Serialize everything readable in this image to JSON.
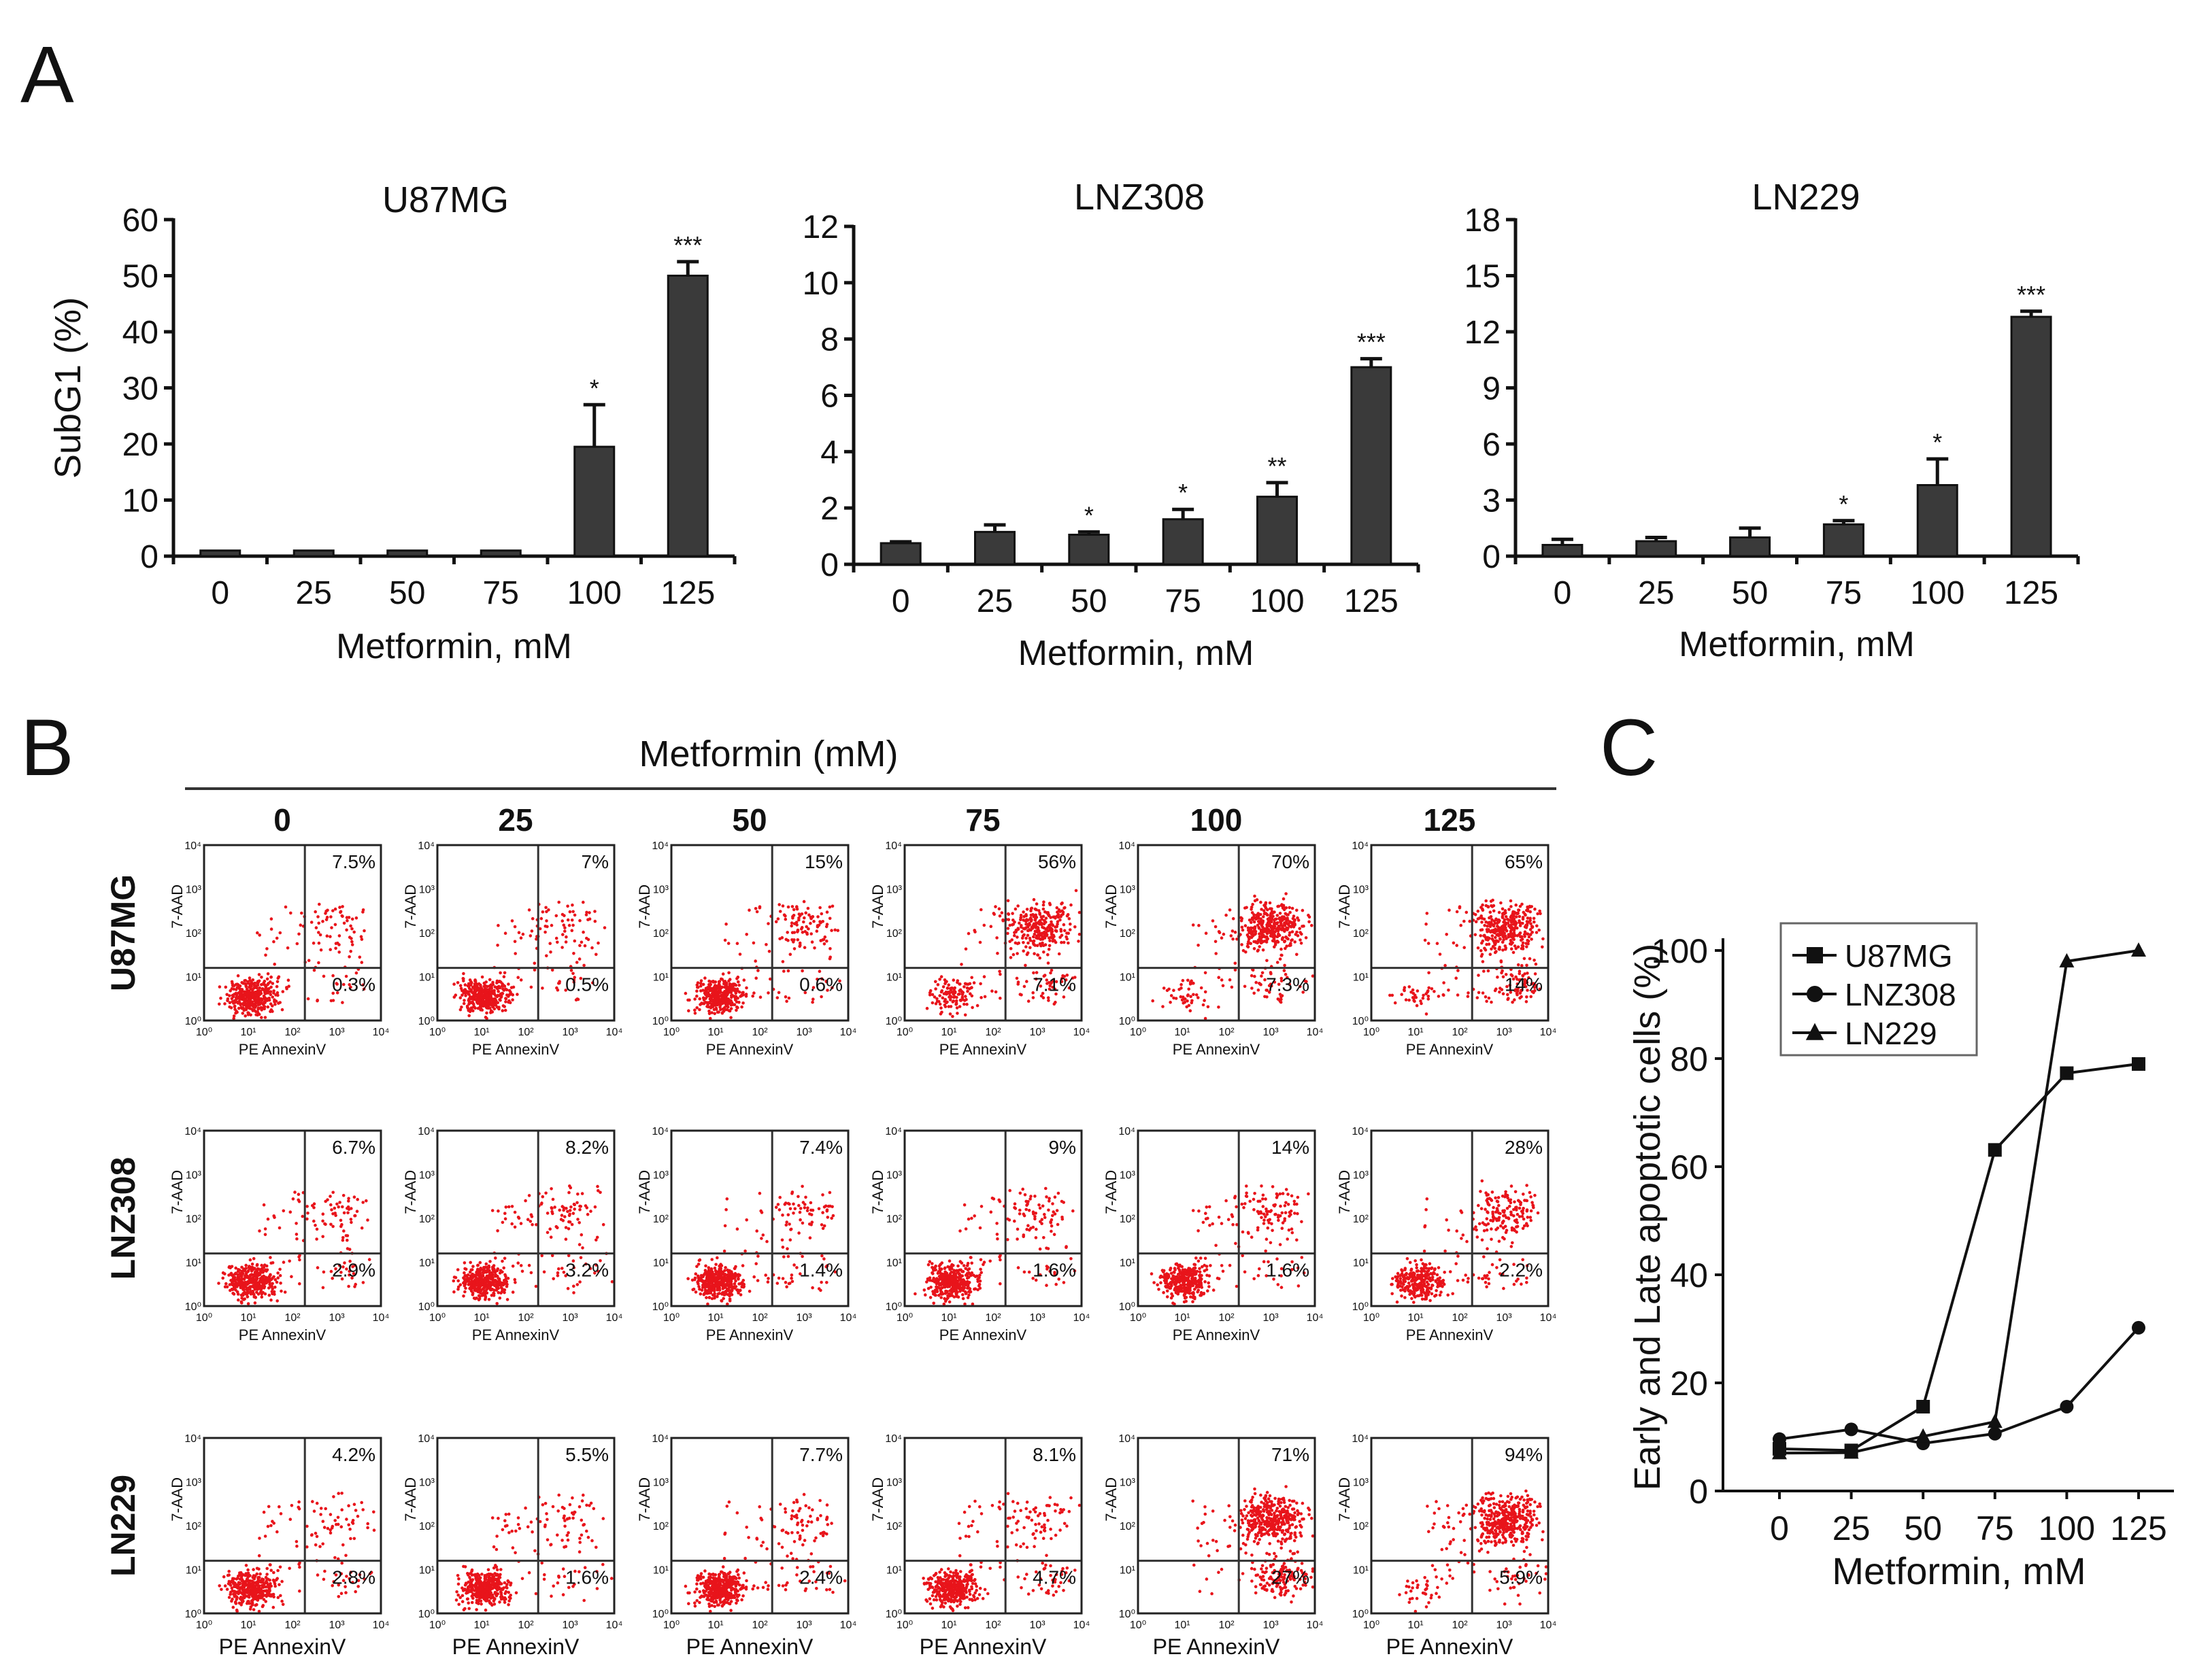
{
  "panels": {
    "a": "A",
    "b": "B",
    "c": "C"
  },
  "chart_data": [
    {
      "type": "bar",
      "title": "U87MG",
      "xlabel": "Metformin, mM",
      "ylabel": "SubG1 (%)",
      "categories": [
        "0",
        "25",
        "50",
        "75",
        "100",
        "125"
      ],
      "values": [
        1,
        1,
        1,
        1,
        19.5,
        50
      ],
      "errors": [
        0,
        0,
        0,
        0,
        7.5,
        2.5
      ],
      "significance": [
        "",
        "",
        "",
        "",
        "*",
        "***"
      ],
      "ylim": [
        0,
        60
      ],
      "yticks": [
        "0",
        "10",
        "20",
        "30",
        "40",
        "50",
        "60"
      ]
    },
    {
      "type": "bar",
      "title": "LNZ308",
      "xlabel": "Metformin, mM",
      "ylabel": "",
      "categories": [
        "0",
        "25",
        "50",
        "75",
        "100",
        "125"
      ],
      "values": [
        0.75,
        1.15,
        1.05,
        1.6,
        2.4,
        7.0
      ],
      "errors": [
        0.05,
        0.25,
        0.1,
        0.35,
        0.5,
        0.3
      ],
      "significance": [
        "",
        "",
        "*",
        "*",
        "**",
        "***"
      ],
      "ylim": [
        0,
        12
      ],
      "yticks": [
        "0",
        "2",
        "4",
        "6",
        "8",
        "10",
        "12"
      ]
    },
    {
      "type": "bar",
      "title": "LN229",
      "xlabel": "Metformin, mM",
      "ylabel": "",
      "categories": [
        "0",
        "25",
        "50",
        "75",
        "100",
        "125"
      ],
      "values": [
        0.6,
        0.8,
        1.0,
        1.7,
        3.8,
        12.8
      ],
      "errors": [
        0.3,
        0.2,
        0.5,
        0.2,
        1.4,
        0.3
      ],
      "significance": [
        "",
        "",
        "",
        "*",
        "*",
        "***"
      ],
      "ylim": [
        0,
        18
      ],
      "yticks": [
        "0",
        "3",
        "6",
        "9",
        "12",
        "15",
        "18"
      ]
    },
    {
      "type": "scatter",
      "title": "Metformin (mM)",
      "columns": [
        "0",
        "25",
        "50",
        "75",
        "100",
        "125"
      ],
      "rows": [
        "U87MG",
        "LNZ308",
        "LN229"
      ],
      "xlabel": "PE AnnexinV",
      "ylabel": "7-AAD",
      "axis_tick_labels": [
        "10⁰",
        "10¹",
        "10²",
        "10³",
        "10⁴"
      ],
      "upper_right_percent": [
        [
          "7.5%",
          "7%",
          "15%",
          "56%",
          "70%",
          "65%"
        ],
        [
          "6.7%",
          "8.2%",
          "7.4%",
          "9%",
          "14%",
          "28%"
        ],
        [
          "4.2%",
          "5.5%",
          "7.7%",
          "8.1%",
          "71%",
          "94%"
        ]
      ],
      "lower_right_percent": [
        [
          "0.3%",
          "0.5%",
          "0.6%",
          "7.1%",
          "7.3%",
          "14%"
        ],
        [
          "2.9%",
          "3.2%",
          "1.4%",
          "1.6%",
          "1.6%",
          "2.2%"
        ],
        [
          "2.8%",
          "1.6%",
          "2.4%",
          "4.7%",
          "27%",
          "5.9%"
        ]
      ],
      "dot_color": "#e8141b"
    },
    {
      "type": "line",
      "title": "",
      "xlabel": "Metformin, mM",
      "ylabel": "Early and Late apoptotic cells (%)",
      "x": [
        0,
        25,
        50,
        75,
        100,
        125
      ],
      "xticks": [
        "0",
        "25",
        "50",
        "75",
        "100",
        "125"
      ],
      "yticks": [
        "0",
        "20",
        "40",
        "60",
        "80",
        "100"
      ],
      "ylim": [
        0,
        100
      ],
      "series": [
        {
          "name": "U87MG",
          "marker": "square",
          "values": [
            7.8,
            7.5,
            15.6,
            63.1,
            77.3,
            79
          ]
        },
        {
          "name": "LNZ308",
          "marker": "circle",
          "values": [
            9.6,
            11.4,
            8.8,
            10.6,
            15.6,
            30.2
          ]
        },
        {
          "name": "LN229",
          "marker": "triangle",
          "values": [
            7,
            7.1,
            10.1,
            12.8,
            98,
            100
          ]
        }
      ],
      "legend_position": "top-left"
    }
  ]
}
